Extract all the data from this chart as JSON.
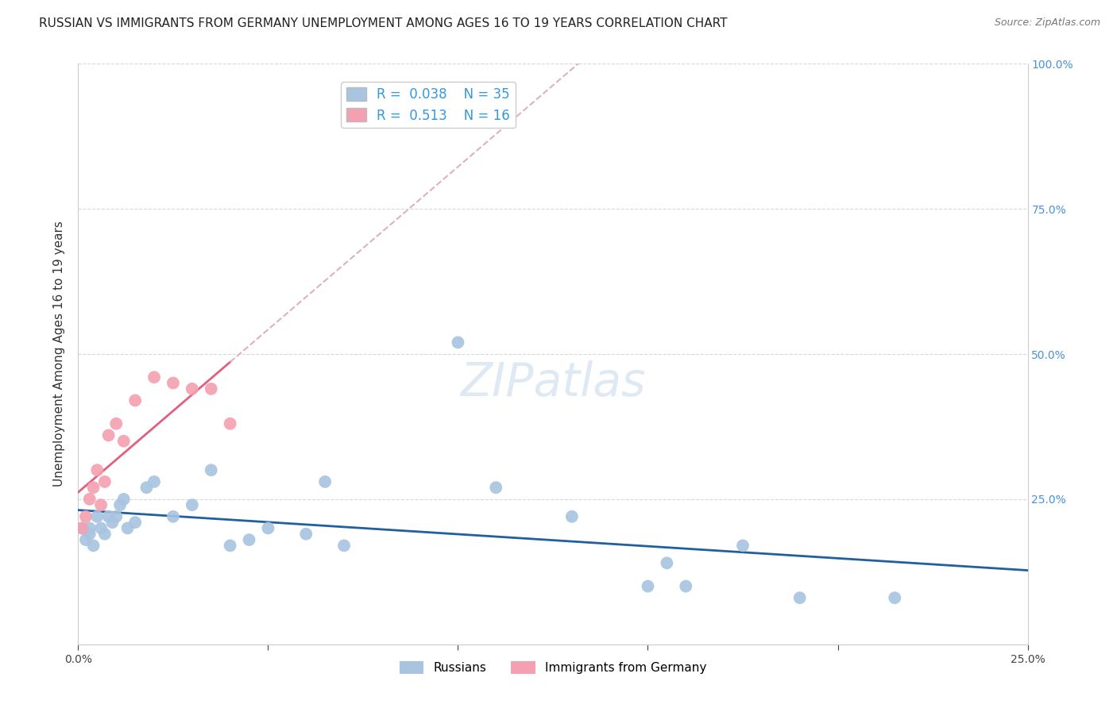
{
  "title": "RUSSIAN VS IMMIGRANTS FROM GERMANY UNEMPLOYMENT AMONG AGES 16 TO 19 YEARS CORRELATION CHART",
  "source_text": "Source: ZipAtlas.com",
  "ylabel": "Unemployment Among Ages 16 to 19 years",
  "xlim": [
    0.0,
    0.25
  ],
  "ylim": [
    0.0,
    1.0
  ],
  "watermark": "ZIPatlas",
  "legend_R_russian": "0.038",
  "legend_N_russian": "35",
  "legend_R_germany": "0.513",
  "legend_N_germany": "16",
  "russian_color": "#a8c4e0",
  "germany_color": "#f4a0b0",
  "russian_line_color": "#2060a0",
  "germany_line_color": "#e06080",
  "trendline_dashed_color": "#e0b0bc",
  "russians_x": [
    0.001,
    0.002,
    0.003,
    0.003,
    0.004,
    0.005,
    0.006,
    0.007,
    0.008,
    0.009,
    0.01,
    0.011,
    0.012,
    0.013,
    0.015,
    0.018,
    0.02,
    0.025,
    0.03,
    0.035,
    0.04,
    0.045,
    0.05,
    0.06,
    0.065,
    0.07,
    0.1,
    0.11,
    0.13,
    0.15,
    0.155,
    0.16,
    0.175,
    0.19,
    0.215
  ],
  "russians_y": [
    0.2,
    0.18,
    0.19,
    0.2,
    0.17,
    0.22,
    0.2,
    0.19,
    0.22,
    0.21,
    0.22,
    0.24,
    0.25,
    0.2,
    0.21,
    0.27,
    0.28,
    0.22,
    0.24,
    0.3,
    0.17,
    0.18,
    0.2,
    0.19,
    0.28,
    0.17,
    0.52,
    0.27,
    0.22,
    0.1,
    0.14,
    0.1,
    0.17,
    0.08,
    0.08
  ],
  "germany_x": [
    0.001,
    0.002,
    0.003,
    0.004,
    0.005,
    0.006,
    0.007,
    0.008,
    0.01,
    0.012,
    0.015,
    0.02,
    0.025,
    0.03,
    0.035,
    0.04
  ],
  "germany_y": [
    0.2,
    0.22,
    0.25,
    0.27,
    0.3,
    0.24,
    0.28,
    0.36,
    0.38,
    0.35,
    0.42,
    0.46,
    0.45,
    0.44,
    0.44,
    0.38
  ],
  "grid_color": "#d8d8d8",
  "background_color": "#ffffff",
  "title_fontsize": 11,
  "axis_label_fontsize": 11,
  "tick_fontsize": 10,
  "legend_fontsize": 12
}
